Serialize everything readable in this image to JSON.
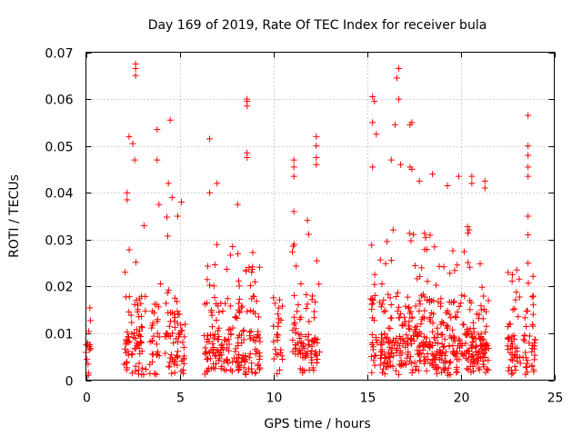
{
  "chart_data": {
    "type": "scatter",
    "title": "Day 169 of 2019, Rate Of TEC Index for receiver bula",
    "xlabel": "GPS time / hours",
    "ylabel": "ROTI / TECUs",
    "xlim": [
      0,
      25
    ],
    "ylim": [
      0,
      0.07
    ],
    "xticks": [
      0,
      5,
      10,
      15,
      20,
      25
    ],
    "xtick_labels": [
      "0",
      "5",
      "10",
      "15",
      "20",
      "25"
    ],
    "yticks": [
      0,
      0.01,
      0.02,
      0.03,
      0.04,
      0.05,
      0.06,
      0.07
    ],
    "ytick_labels": [
      "0",
      "0.01",
      "0.02",
      "0.03",
      "0.04",
      "0.05",
      "0.06",
      "0.07"
    ],
    "grid": true,
    "marker": "+",
    "marker_color": "#ff0000",
    "clusters": [
      {
        "x_start": 0.0,
        "x_end": 0.3,
        "y_max": 0.015,
        "density": 12
      },
      {
        "x_start": 2.0,
        "x_end": 3.2,
        "y_max": 0.028,
        "density": 14
      },
      {
        "x_start": 3.4,
        "x_end": 4.0,
        "y_max": 0.025,
        "density": 12
      },
      {
        "x_start": 4.2,
        "x_end": 5.3,
        "y_max": 0.035,
        "density": 14
      },
      {
        "x_start": 6.3,
        "x_end": 9.3,
        "y_max": 0.032,
        "density": 16
      },
      {
        "x_start": 10.0,
        "x_end": 10.5,
        "y_max": 0.018,
        "density": 12
      },
      {
        "x_start": 11.0,
        "x_end": 12.5,
        "y_max": 0.035,
        "density": 14
      },
      {
        "x_start": 15.2,
        "x_end": 21.5,
        "y_max": 0.033,
        "density": 18
      },
      {
        "x_start": 22.5,
        "x_end": 24.0,
        "y_max": 0.023,
        "density": 14
      }
    ],
    "outliers": [
      {
        "x": 2.3,
        "y": 0.052
      },
      {
        "x": 2.5,
        "y": 0.0505
      },
      {
        "x": 2.6,
        "y": 0.047
      },
      {
        "x": 2.65,
        "y": 0.065
      },
      {
        "x": 2.65,
        "y": 0.0665
      },
      {
        "x": 2.65,
        "y": 0.0675
      },
      {
        "x": 2.2,
        "y": 0.0385
      },
      {
        "x": 2.2,
        "y": 0.04
      },
      {
        "x": 3.1,
        "y": 0.033
      },
      {
        "x": 3.8,
        "y": 0.0535
      },
      {
        "x": 3.8,
        "y": 0.047
      },
      {
        "x": 3.9,
        "y": 0.0375
      },
      {
        "x": 4.5,
        "y": 0.0555
      },
      {
        "x": 4.4,
        "y": 0.042
      },
      {
        "x": 4.6,
        "y": 0.039
      },
      {
        "x": 4.9,
        "y": 0.035
      },
      {
        "x": 5.1,
        "y": 0.038
      },
      {
        "x": 6.6,
        "y": 0.0515
      },
      {
        "x": 6.6,
        "y": 0.04
      },
      {
        "x": 7.0,
        "y": 0.042
      },
      {
        "x": 8.1,
        "y": 0.0375
      },
      {
        "x": 8.6,
        "y": 0.0585
      },
      {
        "x": 8.6,
        "y": 0.0595
      },
      {
        "x": 8.6,
        "y": 0.06
      },
      {
        "x": 8.6,
        "y": 0.0485
      },
      {
        "x": 8.6,
        "y": 0.0475
      },
      {
        "x": 11.1,
        "y": 0.047
      },
      {
        "x": 11.1,
        "y": 0.0455
      },
      {
        "x": 11.1,
        "y": 0.0435
      },
      {
        "x": 11.1,
        "y": 0.036
      },
      {
        "x": 12.3,
        "y": 0.052
      },
      {
        "x": 12.3,
        "y": 0.05
      },
      {
        "x": 12.3,
        "y": 0.0475
      },
      {
        "x": 12.3,
        "y": 0.046
      },
      {
        "x": 15.3,
        "y": 0.0605
      },
      {
        "x": 15.4,
        "y": 0.0595
      },
      {
        "x": 15.3,
        "y": 0.055
      },
      {
        "x": 15.5,
        "y": 0.0525
      },
      {
        "x": 15.3,
        "y": 0.0455
      },
      {
        "x": 16.7,
        "y": 0.0665
      },
      {
        "x": 16.6,
        "y": 0.0645
      },
      {
        "x": 16.7,
        "y": 0.06
      },
      {
        "x": 16.5,
        "y": 0.0545
      },
      {
        "x": 16.3,
        "y": 0.047
      },
      {
        "x": 16.8,
        "y": 0.046
      },
      {
        "x": 17.3,
        "y": 0.0545
      },
      {
        "x": 17.4,
        "y": 0.055
      },
      {
        "x": 17.3,
        "y": 0.0455
      },
      {
        "x": 17.4,
        "y": 0.045
      },
      {
        "x": 17.8,
        "y": 0.0425
      },
      {
        "x": 18.5,
        "y": 0.044
      },
      {
        "x": 19.3,
        "y": 0.0415
      },
      {
        "x": 19.9,
        "y": 0.0435
      },
      {
        "x": 20.6,
        "y": 0.0435
      },
      {
        "x": 20.6,
        "y": 0.042
      },
      {
        "x": 21.3,
        "y": 0.0425
      },
      {
        "x": 21.3,
        "y": 0.041
      },
      {
        "x": 23.6,
        "y": 0.0565
      },
      {
        "x": 23.6,
        "y": 0.05
      },
      {
        "x": 23.6,
        "y": 0.048
      },
      {
        "x": 23.6,
        "y": 0.0455
      },
      {
        "x": 23.6,
        "y": 0.0435
      },
      {
        "x": 23.6,
        "y": 0.035
      },
      {
        "x": 23.6,
        "y": 0.031
      },
      {
        "x": 23.0,
        "y": 0.0235
      },
      {
        "x": 23.6,
        "y": 0.025
      }
    ]
  }
}
